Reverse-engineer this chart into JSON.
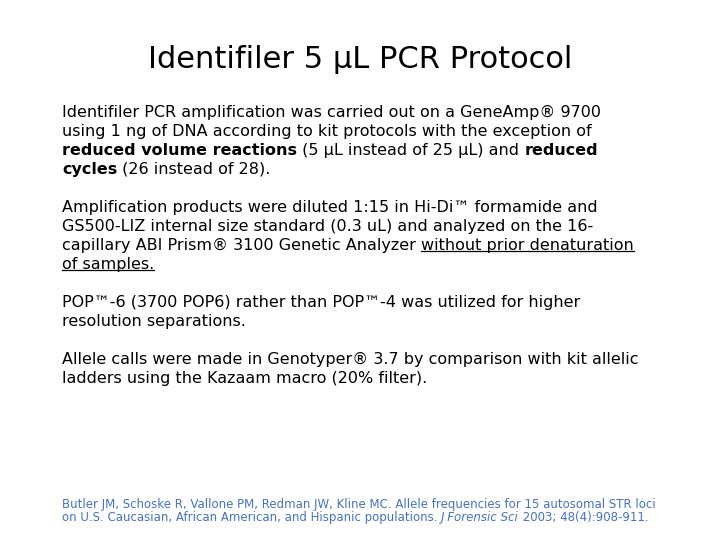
{
  "title": "Identifiler 5 µL PCR Protocol",
  "title_fontsize": 22,
  "bg_color": "#ffffff",
  "text_color": "#000000",
  "footer_color": "#4472C4",
  "body_fontsize": 11.5,
  "footer_fontsize": 8.5,
  "footer_line1": "Butler JM, Schoske R, Vallone PM, Redman JW, Kline MC. Allele frequencies for 15 autosomal STR loci",
  "footer_line2_parts": [
    {
      "text": "on U.S. Caucasian, African American, and Hispanic populations. ",
      "italic": false
    },
    {
      "text": "J Forensic Sci",
      "italic": true
    },
    {
      "text": " 2003; 48(4):908-911.",
      "italic": false
    }
  ]
}
